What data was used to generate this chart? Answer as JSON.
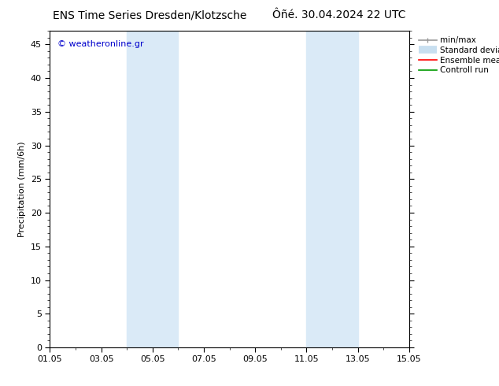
{
  "title_left": "ENS Time Series Dresden/Klotzsche",
  "title_right": "Ôñé. 30.04.2024 22 UTC",
  "ylabel": "Precipitation (mm/6h)",
  "watermark": "© weatheronline.gr",
  "watermark_color": "#0000cc",
  "xticklabels": [
    "01.05",
    "03.05",
    "05.05",
    "07.05",
    "09.05",
    "11.05",
    "13.05",
    "15.05"
  ],
  "xtick_positions": [
    0,
    2,
    4,
    6,
    8,
    10,
    12,
    14
  ],
  "ylim": [
    0,
    47
  ],
  "yticks": [
    0,
    5,
    10,
    15,
    20,
    25,
    30,
    35,
    40,
    45
  ],
  "xlim": [
    0,
    14
  ],
  "background_color": "#ffffff",
  "plot_bg_color": "#ffffff",
  "shaded_bands": [
    {
      "xmin": 3.0,
      "xmax": 5.0,
      "color": "#daeaf7"
    },
    {
      "xmin": 10.0,
      "xmax": 12.0,
      "color": "#daeaf7"
    }
  ],
  "legend_items": [
    {
      "label": "min/max",
      "color": "#999999",
      "lw": 1.2,
      "style": "line_with_caps"
    },
    {
      "label": "Standard deviation",
      "color": "#c8dff0",
      "lw": 7,
      "style": "thick"
    },
    {
      "label": "Ensemble mean run",
      "color": "#ff0000",
      "lw": 1.2,
      "style": "line"
    },
    {
      "label": "Controll run",
      "color": "#009900",
      "lw": 1.2,
      "style": "line"
    }
  ],
  "title_fontsize": 10,
  "axis_fontsize": 8,
  "tick_fontsize": 8,
  "legend_fontsize": 7.5
}
